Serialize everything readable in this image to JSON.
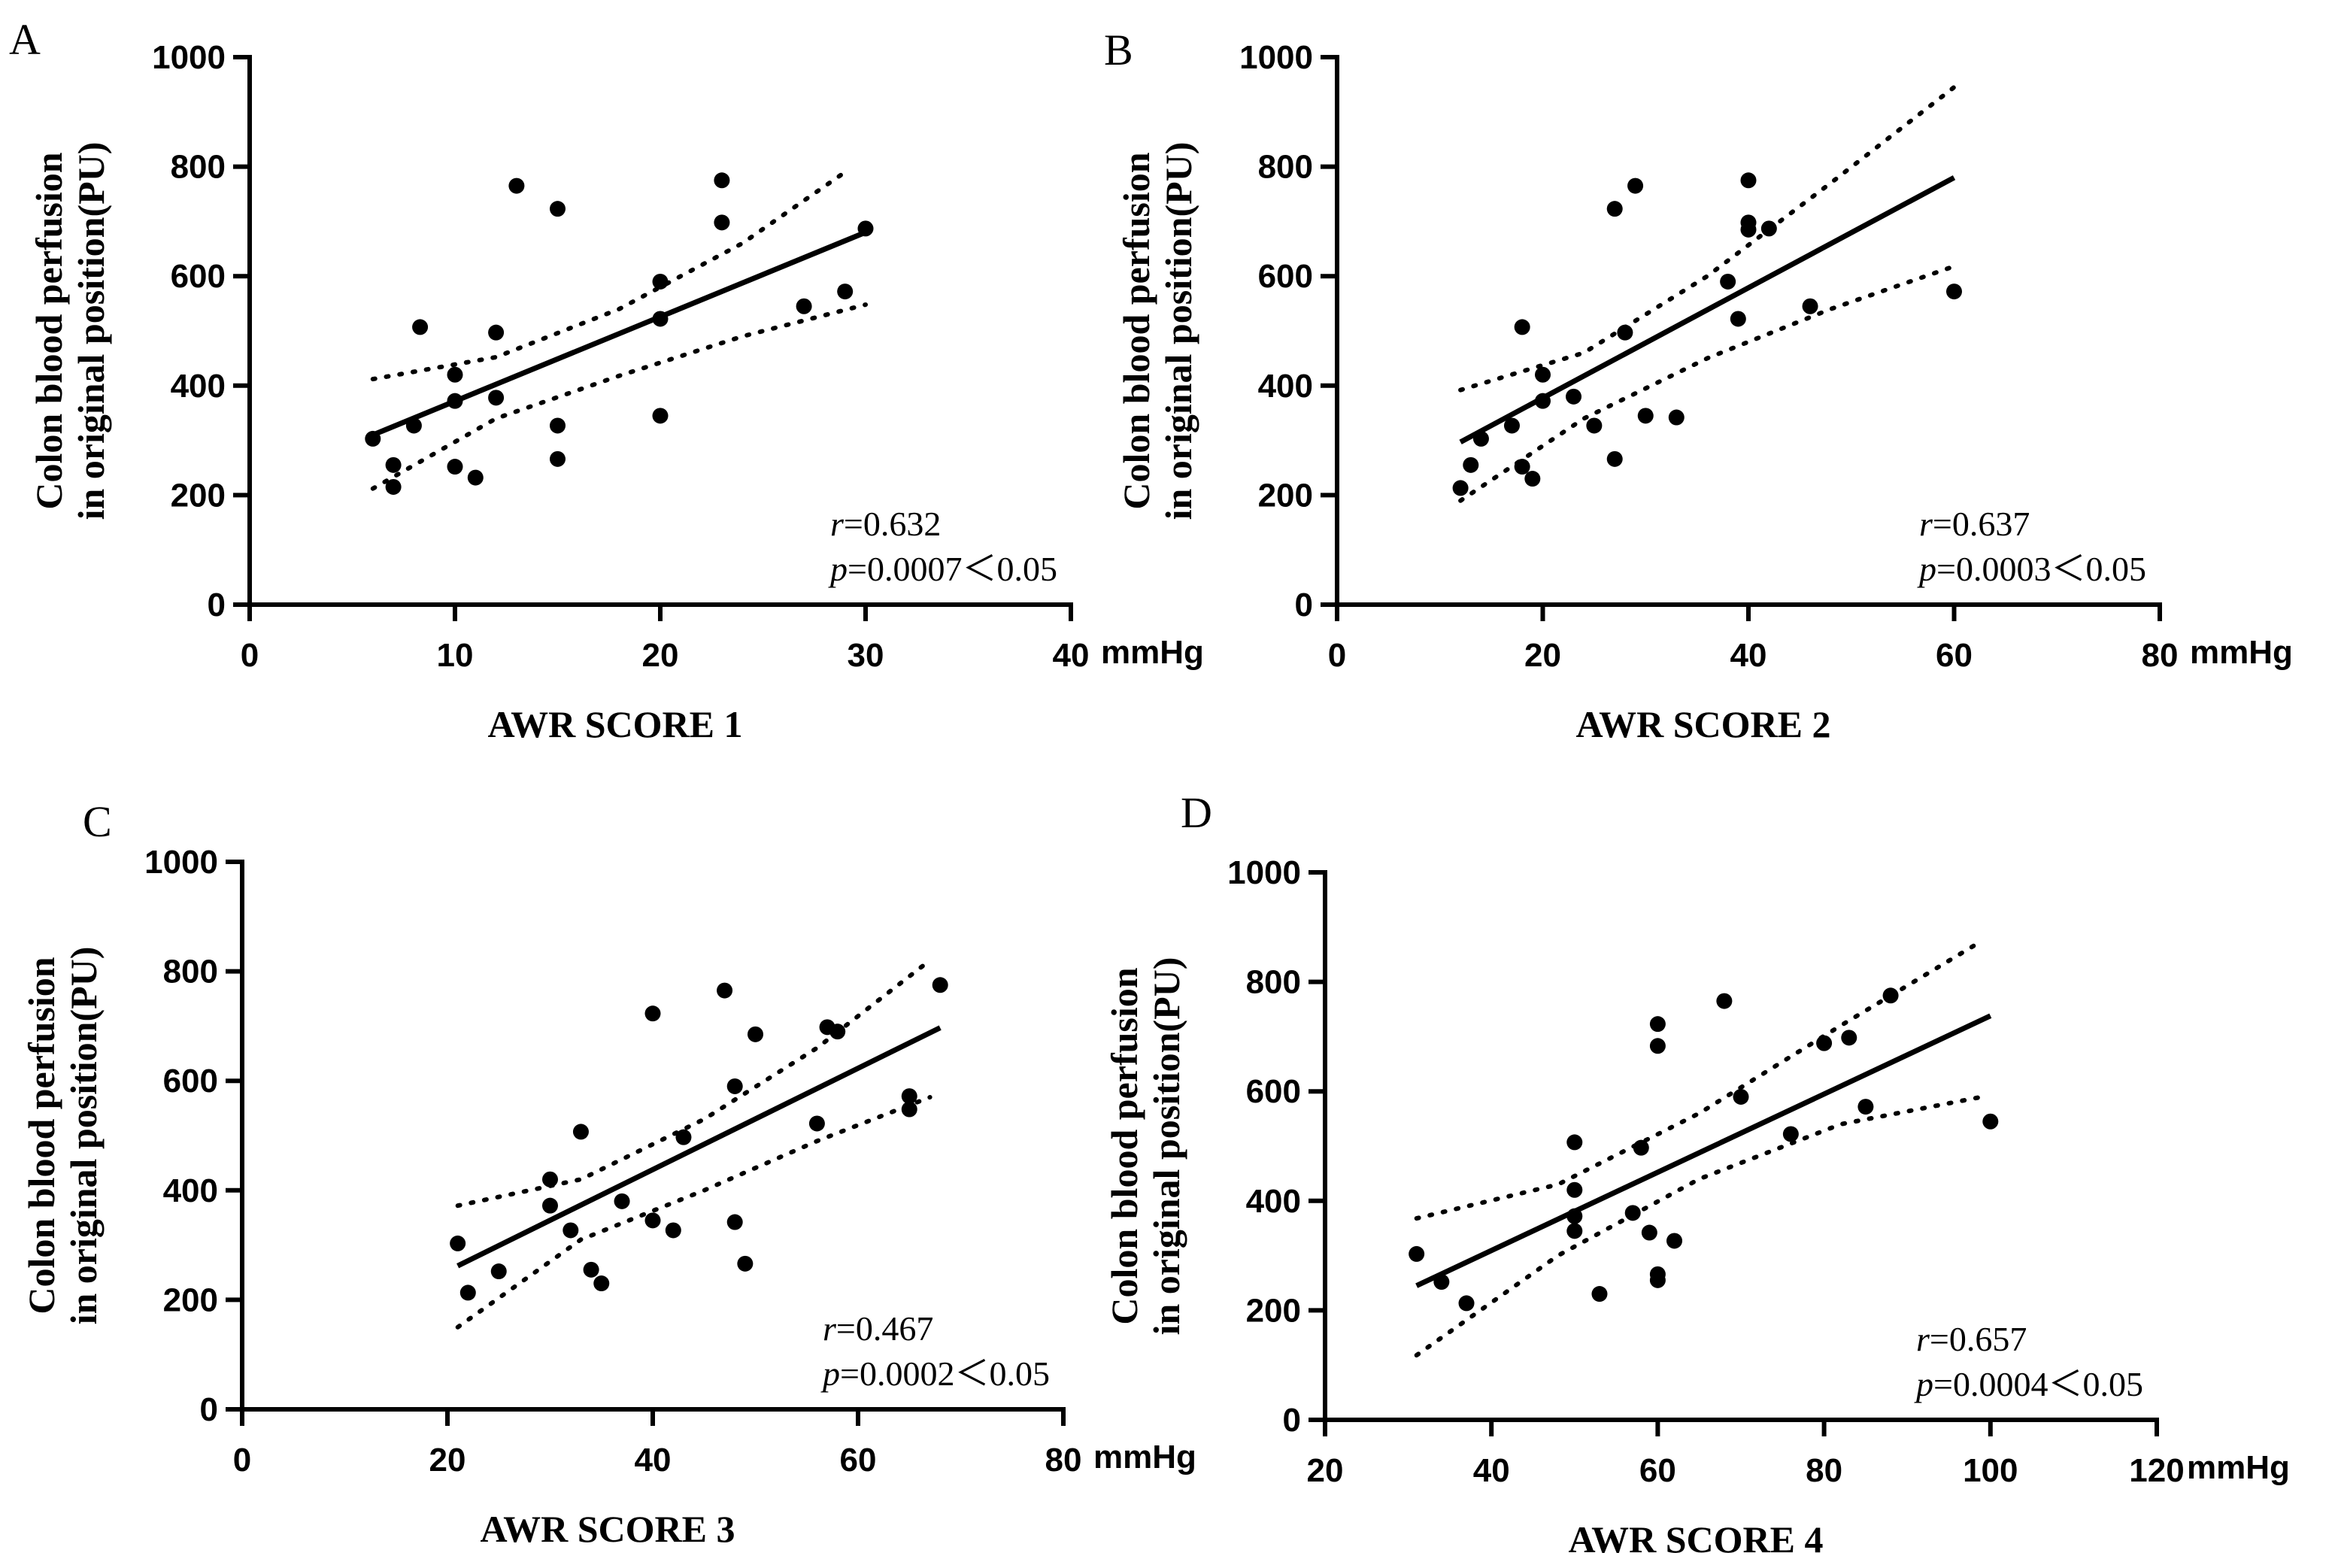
{
  "chart_data": [
    {
      "type": "scatter",
      "panel": "A",
      "ylabel_line1": "Colon blood perfusion",
      "ylabel_line2": "in original position(PU)",
      "xlabel": "AWR SCORE 1",
      "x_unit": "mmHg",
      "xlim": [
        0,
        40
      ],
      "ylim": [
        0,
        1000
      ],
      "xticks": [
        0,
        10,
        20,
        30,
        40
      ],
      "yticks": [
        0,
        200,
        400,
        600,
        800,
        1000
      ],
      "r_label": "r",
      "r_value": "=0.632",
      "p_label": "p",
      "p_value": "=0.0007＜0.05",
      "points": [
        {
          "x": 6,
          "y": 303
        },
        {
          "x": 7,
          "y": 255
        },
        {
          "x": 7,
          "y": 215
        },
        {
          "x": 8,
          "y": 327
        },
        {
          "x": 8.3,
          "y": 507
        },
        {
          "x": 10,
          "y": 420
        },
        {
          "x": 10,
          "y": 372
        },
        {
          "x": 10,
          "y": 252
        },
        {
          "x": 11,
          "y": 232
        },
        {
          "x": 12,
          "y": 497
        },
        {
          "x": 12,
          "y": 378
        },
        {
          "x": 13,
          "y": 765
        },
        {
          "x": 15,
          "y": 723
        },
        {
          "x": 15,
          "y": 327
        },
        {
          "x": 15,
          "y": 266
        },
        {
          "x": 20,
          "y": 590
        },
        {
          "x": 20,
          "y": 522
        },
        {
          "x": 20,
          "y": 345
        },
        {
          "x": 23,
          "y": 775
        },
        {
          "x": 23,
          "y": 698
        },
        {
          "x": 27,
          "y": 545
        },
        {
          "x": 29,
          "y": 572
        },
        {
          "x": 30,
          "y": 687
        }
      ],
      "fit_line": [
        [
          6,
          310
        ],
        [
          30,
          680
        ]
      ],
      "ci_upper": [
        [
          6,
          412
        ],
        [
          12,
          452
        ],
        [
          18,
          540
        ],
        [
          24,
          660
        ],
        [
          29,
          790
        ]
      ],
      "ci_lower": [
        [
          6,
          212
        ],
        [
          12,
          340
        ],
        [
          18,
          418
        ],
        [
          24,
          490
        ],
        [
          30,
          548
        ]
      ]
    },
    {
      "type": "scatter",
      "panel": "B",
      "ylabel_line1": "Colon blood perfusion",
      "ylabel_line2": "in original position(PU)",
      "xlabel": "AWR SCORE 2",
      "x_unit": "mmHg",
      "xlim": [
        0,
        80
      ],
      "ylim": [
        0,
        1000
      ],
      "xticks": [
        0,
        20,
        40,
        60,
        80
      ],
      "yticks": [
        0,
        200,
        400,
        600,
        800,
        1000
      ],
      "r_label": "r",
      "r_value": "=0.637",
      "p_label": "p",
      "p_value": "=0.0003＜0.05",
      "points": [
        {
          "x": 12,
          "y": 213
        },
        {
          "x": 13,
          "y": 255
        },
        {
          "x": 14,
          "y": 303
        },
        {
          "x": 17,
          "y": 327
        },
        {
          "x": 18,
          "y": 507
        },
        {
          "x": 18,
          "y": 252
        },
        {
          "x": 19,
          "y": 230
        },
        {
          "x": 20,
          "y": 420
        },
        {
          "x": 20,
          "y": 372
        },
        {
          "x": 23,
          "y": 380
        },
        {
          "x": 25,
          "y": 327
        },
        {
          "x": 27,
          "y": 723
        },
        {
          "x": 27,
          "y": 266
        },
        {
          "x": 28,
          "y": 497
        },
        {
          "x": 29,
          "y": 765
        },
        {
          "x": 30,
          "y": 345
        },
        {
          "x": 33,
          "y": 342
        },
        {
          "x": 38,
          "y": 590
        },
        {
          "x": 39,
          "y": 522
        },
        {
          "x": 40,
          "y": 775
        },
        {
          "x": 40,
          "y": 698
        },
        {
          "x": 40,
          "y": 685
        },
        {
          "x": 42,
          "y": 687
        },
        {
          "x": 46,
          "y": 545
        },
        {
          "x": 60,
          "y": 572
        }
      ],
      "fit_line": [
        [
          12,
          297
        ],
        [
          60,
          780
        ]
      ],
      "ci_upper": [
        [
          12,
          392
        ],
        [
          24,
          460
        ],
        [
          36,
          600
        ],
        [
          48,
          770
        ],
        [
          60,
          945
        ]
      ],
      "ci_lower": [
        [
          12,
          190
        ],
        [
          24,
          340
        ],
        [
          36,
          450
        ],
        [
          48,
          540
        ],
        [
          60,
          618
        ]
      ]
    },
    {
      "type": "scatter",
      "panel": "C",
      "ylabel_line1": "Colon blood perfusion",
      "ylabel_line2": "in original position(PU)",
      "xlabel": "AWR SCORE 3",
      "x_unit": "mmHg",
      "xlim": [
        0,
        80
      ],
      "ylim": [
        0,
        1000
      ],
      "xticks": [
        0,
        20,
        40,
        60,
        80
      ],
      "yticks": [
        0,
        200,
        400,
        600,
        800,
        1000
      ],
      "r_label": "r",
      "r_value": "=0.467",
      "p_label": "p",
      "p_value": "=0.0002＜0.05",
      "points": [
        {
          "x": 21,
          "y": 303
        },
        {
          "x": 22,
          "y": 213
        },
        {
          "x": 25,
          "y": 252
        },
        {
          "x": 30,
          "y": 420
        },
        {
          "x": 30,
          "y": 372
        },
        {
          "x": 32,
          "y": 327
        },
        {
          "x": 33,
          "y": 507
        },
        {
          "x": 34,
          "y": 255
        },
        {
          "x": 35,
          "y": 230
        },
        {
          "x": 37,
          "y": 380
        },
        {
          "x": 40,
          "y": 723
        },
        {
          "x": 40,
          "y": 345
        },
        {
          "x": 42,
          "y": 327
        },
        {
          "x": 43,
          "y": 497
        },
        {
          "x": 47,
          "y": 765
        },
        {
          "x": 48,
          "y": 590
        },
        {
          "x": 48,
          "y": 342
        },
        {
          "x": 49,
          "y": 266
        },
        {
          "x": 50,
          "y": 685
        },
        {
          "x": 56,
          "y": 522
        },
        {
          "x": 57,
          "y": 698
        },
        {
          "x": 58,
          "y": 690
        },
        {
          "x": 65,
          "y": 572
        },
        {
          "x": 65,
          "y": 548
        },
        {
          "x": 68,
          "y": 775
        }
      ],
      "fit_line": [
        [
          21,
          262
        ],
        [
          68,
          697
        ]
      ],
      "ci_upper": [
        [
          21,
          372
        ],
        [
          33,
          420
        ],
        [
          45,
          530
        ],
        [
          56,
          660
        ],
        [
          67,
          820
        ]
      ],
      "ci_lower": [
        [
          21,
          150
        ],
        [
          33,
          310
        ],
        [
          45,
          400
        ],
        [
          56,
          490
        ],
        [
          67,
          570
        ]
      ]
    },
    {
      "type": "scatter",
      "panel": "D",
      "ylabel_line1": "Colon blood perfusion",
      "ylabel_line2": "in original position(PU)",
      "xlabel": "AWR SCORE 4",
      "x_unit": "mmHg",
      "xlim": [
        20,
        120
      ],
      "ylim": [
        0,
        1000
      ],
      "xticks": [
        20,
        40,
        60,
        80,
        100,
        120
      ],
      "yticks": [
        0,
        200,
        400,
        600,
        800,
        1000
      ],
      "r_label": "r",
      "r_value": "=0.657",
      "p_label": "p",
      "p_value": "=0.0004＜0.05",
      "points": [
        {
          "x": 31,
          "y": 303
        },
        {
          "x": 34,
          "y": 252
        },
        {
          "x": 37,
          "y": 213
        },
        {
          "x": 50,
          "y": 507
        },
        {
          "x": 50,
          "y": 420
        },
        {
          "x": 50,
          "y": 372
        },
        {
          "x": 50,
          "y": 345
        },
        {
          "x": 53,
          "y": 230
        },
        {
          "x": 57,
          "y": 378
        },
        {
          "x": 58,
          "y": 497
        },
        {
          "x": 59,
          "y": 342
        },
        {
          "x": 60,
          "y": 723
        },
        {
          "x": 60,
          "y": 683
        },
        {
          "x": 60,
          "y": 266
        },
        {
          "x": 60,
          "y": 255
        },
        {
          "x": 62,
          "y": 327
        },
        {
          "x": 68,
          "y": 765
        },
        {
          "x": 70,
          "y": 590
        },
        {
          "x": 76,
          "y": 522
        },
        {
          "x": 80,
          "y": 688
        },
        {
          "x": 83,
          "y": 698
        },
        {
          "x": 85,
          "y": 572
        },
        {
          "x": 88,
          "y": 775
        },
        {
          "x": 100,
          "y": 545
        }
      ],
      "fit_line": [
        [
          31,
          245
        ],
        [
          100,
          738
        ]
      ],
      "ci_upper": [
        [
          31,
          368
        ],
        [
          48,
          430
        ],
        [
          65,
          560
        ],
        [
          82,
          720
        ],
        [
          99,
          875
        ]
      ],
      "ci_lower": [
        [
          31,
          118
        ],
        [
          48,
          300
        ],
        [
          65,
          440
        ],
        [
          82,
          540
        ],
        [
          99,
          590
        ]
      ]
    }
  ]
}
